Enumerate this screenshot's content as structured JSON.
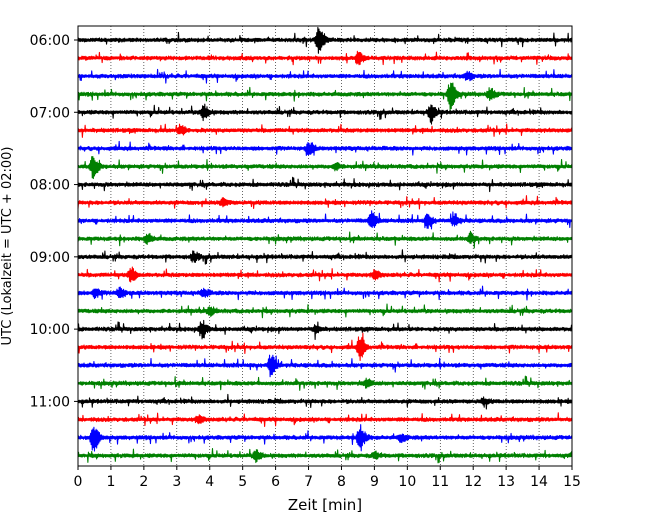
{
  "chart_data": {
    "type": "line",
    "title": "",
    "xlabel": "Zeit  [min]",
    "ylabel": "UTC (Lokalzeit = UTC + 02:00)",
    "xlim": [
      0,
      15
    ],
    "x_ticks": [
      0,
      1,
      2,
      3,
      4,
      5,
      6,
      7,
      8,
      9,
      10,
      11,
      12,
      13,
      14,
      15
    ],
    "x_tick_labels": [
      "0",
      "1",
      "2",
      "3",
      "4",
      "5",
      "6",
      "7",
      "8",
      "9",
      "10",
      "11",
      "12",
      "13",
      "14",
      "15"
    ],
    "y_tick_labels": [
      "06:00",
      "07:00",
      "08:00",
      "09:00",
      "10:00",
      "11:00"
    ],
    "start_time": "06:00",
    "trace_minutes": 15,
    "grid": "x-dotted",
    "trace_colors": [
      "#000000",
      "#ff0000",
      "#0000ff",
      "#008000"
    ],
    "events": [
      {
        "trace": 0,
        "t": 7.3,
        "a": 1.0
      },
      {
        "trace": 1,
        "t": 8.5,
        "a": 0.45
      },
      {
        "trace": 2,
        "t": 11.8,
        "a": 0.25
      },
      {
        "trace": 3,
        "t": 11.3,
        "a": 0.9
      },
      {
        "trace": 3,
        "t": 12.5,
        "a": 0.35
      },
      {
        "trace": 4,
        "t": 3.8,
        "a": 0.5
      },
      {
        "trace": 4,
        "t": 10.7,
        "a": 0.55
      },
      {
        "trace": 5,
        "t": 3.1,
        "a": 0.3
      },
      {
        "trace": 6,
        "t": 7.0,
        "a": 0.4
      },
      {
        "trace": 7,
        "t": 0.45,
        "a": 0.7
      },
      {
        "trace": 7,
        "t": 7.8,
        "a": 0.22
      },
      {
        "trace": 9,
        "t": 4.4,
        "a": 0.25
      },
      {
        "trace": 10,
        "t": 8.9,
        "a": 0.55
      },
      {
        "trace": 10,
        "t": 10.6,
        "a": 0.45
      },
      {
        "trace": 10,
        "t": 11.4,
        "a": 0.4
      },
      {
        "trace": 11,
        "t": 2.1,
        "a": 0.3
      },
      {
        "trace": 11,
        "t": 11.9,
        "a": 0.28
      },
      {
        "trace": 12,
        "t": 3.5,
        "a": 0.3
      },
      {
        "trace": 13,
        "t": 1.6,
        "a": 0.45
      },
      {
        "trace": 13,
        "t": 9.0,
        "a": 0.3
      },
      {
        "trace": 14,
        "t": 0.5,
        "a": 0.3
      },
      {
        "trace": 14,
        "t": 1.25,
        "a": 0.35
      },
      {
        "trace": 14,
        "t": 3.8,
        "a": 0.25
      },
      {
        "trace": 15,
        "t": 4.0,
        "a": 0.25
      },
      {
        "trace": 16,
        "t": 3.75,
        "a": 0.55
      },
      {
        "trace": 16,
        "t": 7.2,
        "a": 0.22
      },
      {
        "trace": 17,
        "t": 8.55,
        "a": 0.75
      },
      {
        "trace": 18,
        "t": 5.85,
        "a": 0.75
      },
      {
        "trace": 19,
        "t": 8.75,
        "a": 0.25
      },
      {
        "trace": 20,
        "t": 12.3,
        "a": 0.2
      },
      {
        "trace": 21,
        "t": 3.65,
        "a": 0.25
      },
      {
        "trace": 22,
        "t": 0.45,
        "a": 0.95
      },
      {
        "trace": 22,
        "t": 8.55,
        "a": 0.85
      },
      {
        "trace": 22,
        "t": 9.8,
        "a": 0.25
      },
      {
        "trace": 23,
        "t": 5.4,
        "a": 0.35
      },
      {
        "trace": 23,
        "t": 9.0,
        "a": 0.2
      }
    ]
  }
}
